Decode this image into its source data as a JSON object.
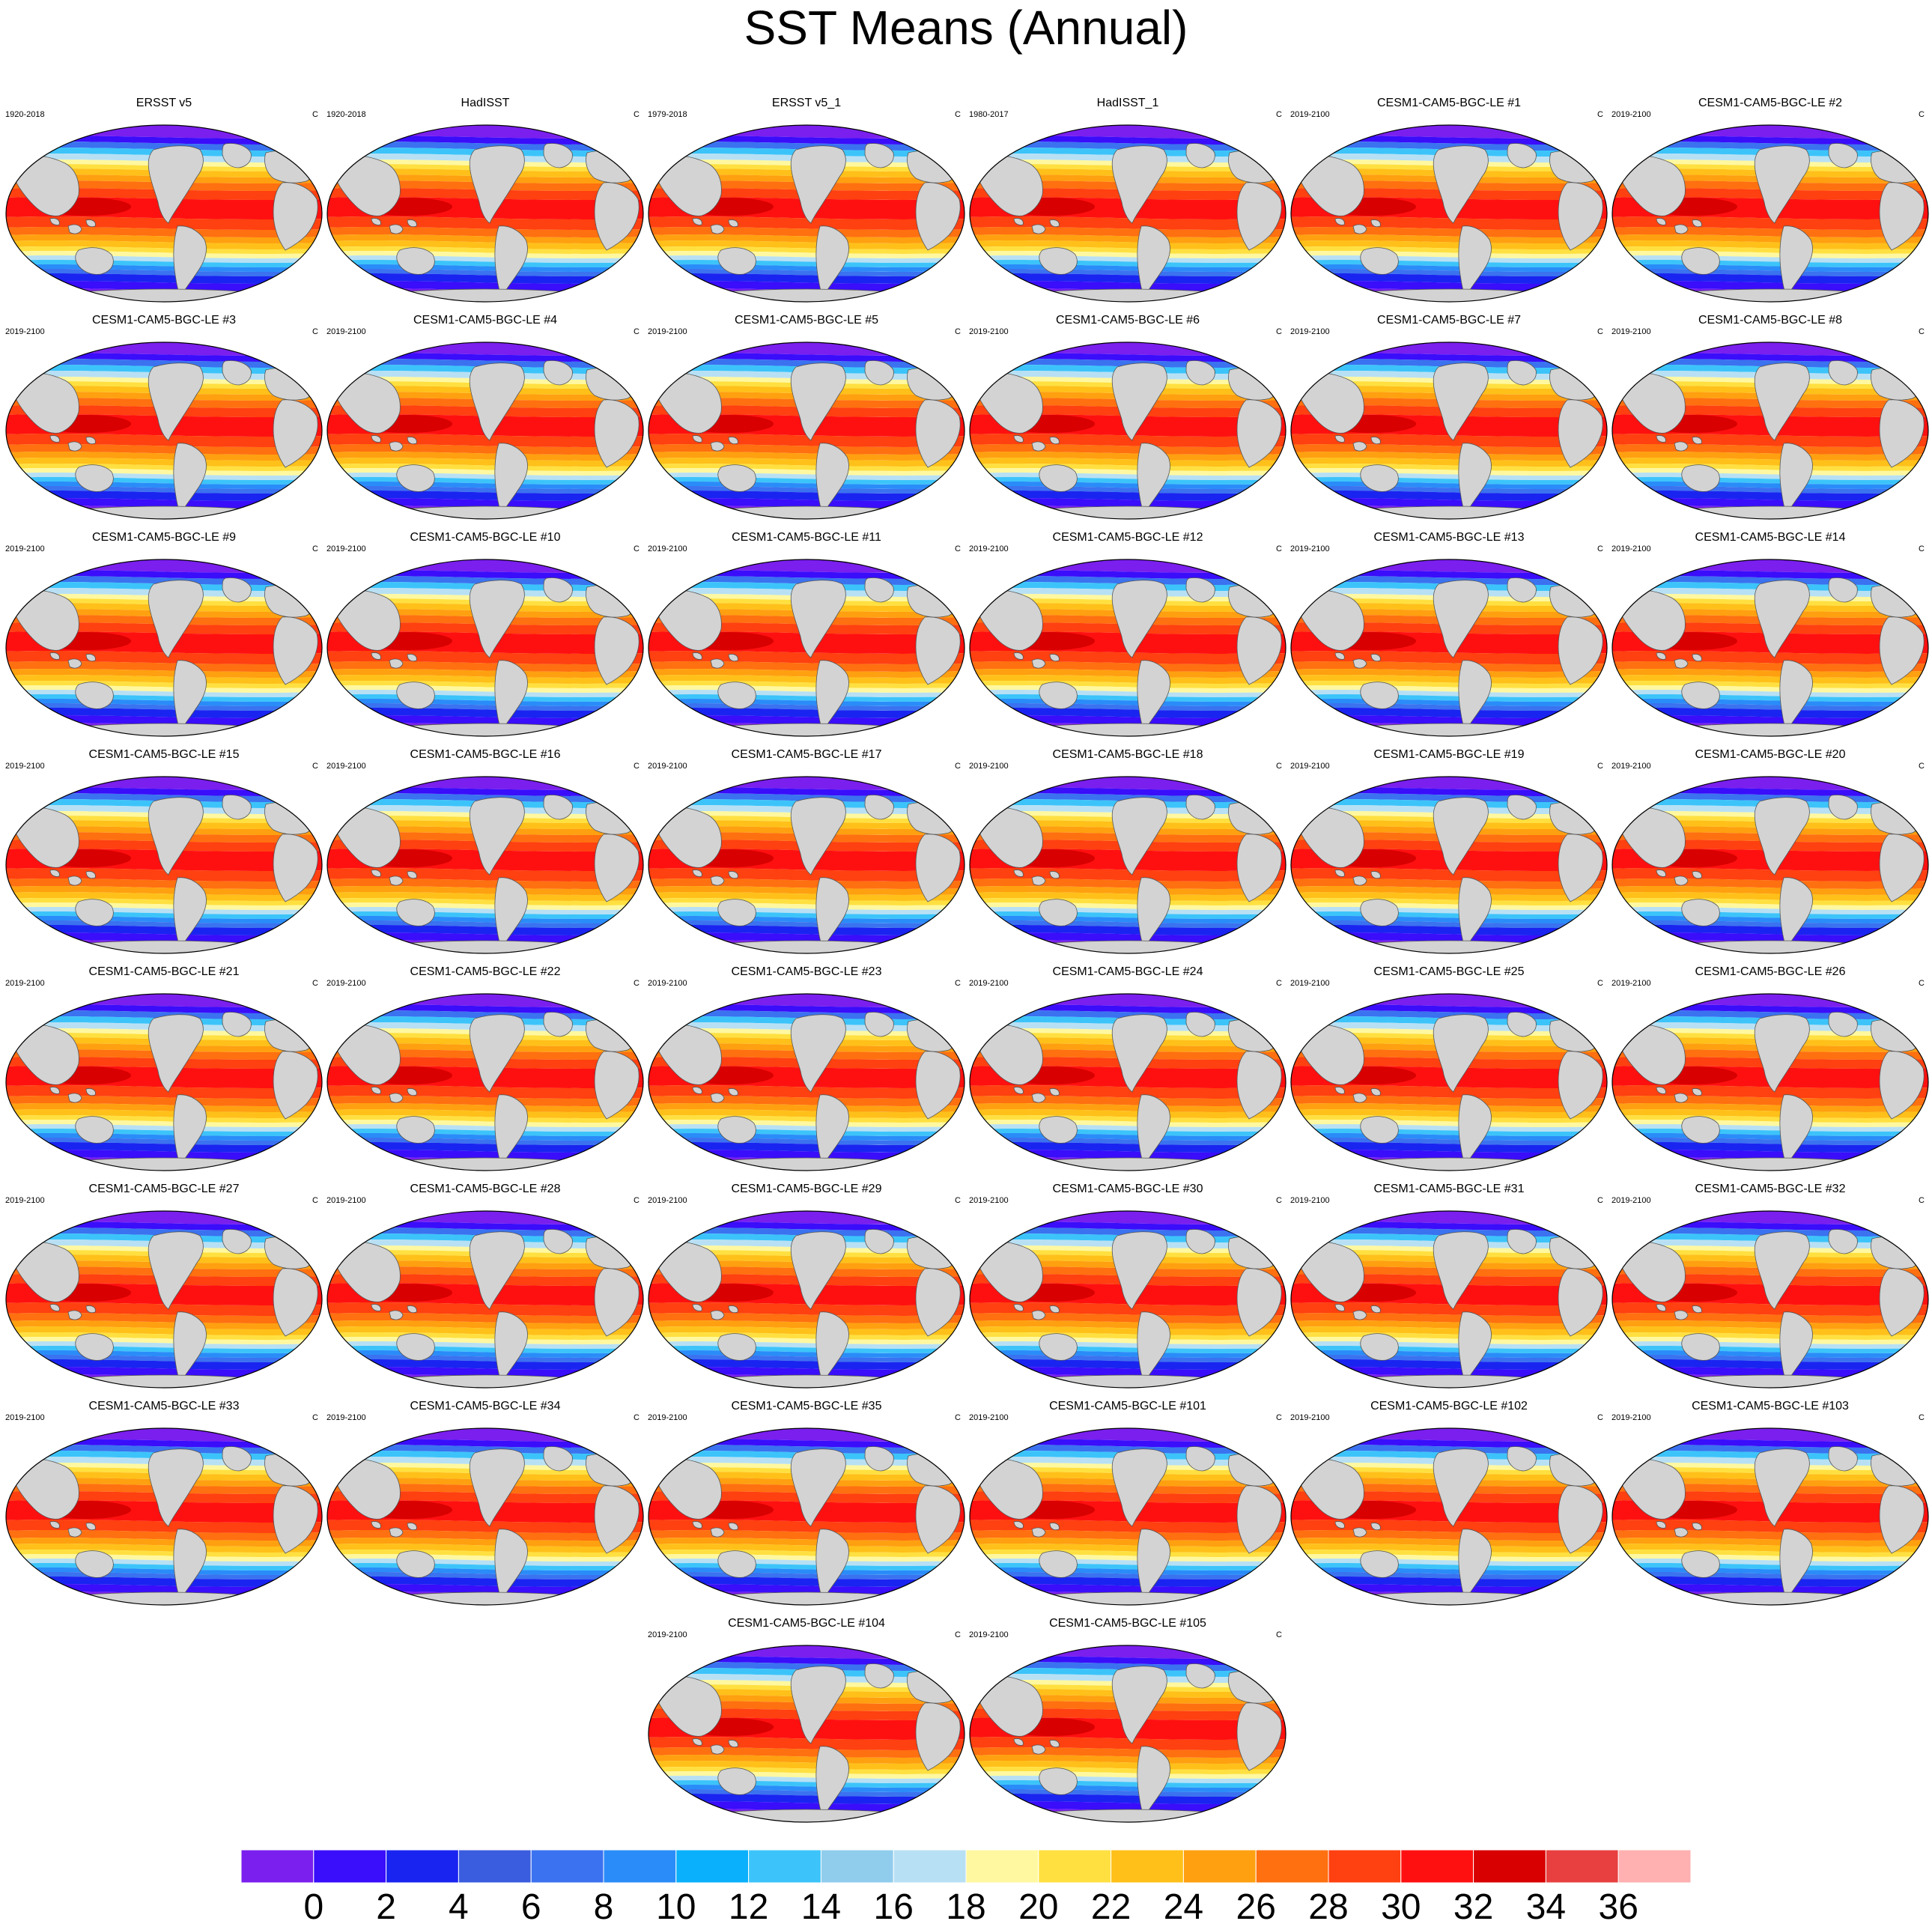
{
  "title": "SST Means (Annual)",
  "units": "C",
  "panels": [
    {
      "title": "ERSST v5",
      "period": "1920-2018",
      "units": "C"
    },
    {
      "title": "HadISST",
      "period": "1920-2018",
      "units": "C"
    },
    {
      "title": "ERSST v5_1",
      "period": "1979-2018",
      "units": "C"
    },
    {
      "title": "HadISST_1",
      "period": "1980-2017",
      "units": "C"
    },
    {
      "title": "CESM1-CAM5-BGC-LE #1",
      "period": "2019-2100",
      "units": "C"
    },
    {
      "title": "CESM1-CAM5-BGC-LE #2",
      "period": "2019-2100",
      "units": "C"
    },
    {
      "title": "CESM1-CAM5-BGC-LE #3",
      "period": "2019-2100",
      "units": "C"
    },
    {
      "title": "CESM1-CAM5-BGC-LE #4",
      "period": "2019-2100",
      "units": "C"
    },
    {
      "title": "CESM1-CAM5-BGC-LE #5",
      "period": "2019-2100",
      "units": "C"
    },
    {
      "title": "CESM1-CAM5-BGC-LE #6",
      "period": "2019-2100",
      "units": "C"
    },
    {
      "title": "CESM1-CAM5-BGC-LE #7",
      "period": "2019-2100",
      "units": "C"
    },
    {
      "title": "CESM1-CAM5-BGC-LE #8",
      "period": "2019-2100",
      "units": "C"
    },
    {
      "title": "CESM1-CAM5-BGC-LE #9",
      "period": "2019-2100",
      "units": "C"
    },
    {
      "title": "CESM1-CAM5-BGC-LE #10",
      "period": "2019-2100",
      "units": "C"
    },
    {
      "title": "CESM1-CAM5-BGC-LE #11",
      "period": "2019-2100",
      "units": "C"
    },
    {
      "title": "CESM1-CAM5-BGC-LE #12",
      "period": "2019-2100",
      "units": "C"
    },
    {
      "title": "CESM1-CAM5-BGC-LE #13",
      "period": "2019-2100",
      "units": "C"
    },
    {
      "title": "CESM1-CAM5-BGC-LE #14",
      "period": "2019-2100",
      "units": "C"
    },
    {
      "title": "CESM1-CAM5-BGC-LE #15",
      "period": "2019-2100",
      "units": "C"
    },
    {
      "title": "CESM1-CAM5-BGC-LE #16",
      "period": "2019-2100",
      "units": "C"
    },
    {
      "title": "CESM1-CAM5-BGC-LE #17",
      "period": "2019-2100",
      "units": "C"
    },
    {
      "title": "CESM1-CAM5-BGC-LE #18",
      "period": "2019-2100",
      "units": "C"
    },
    {
      "title": "CESM1-CAM5-BGC-LE #19",
      "period": "2019-2100",
      "units": "C"
    },
    {
      "title": "CESM1-CAM5-BGC-LE #20",
      "period": "2019-2100",
      "units": "C"
    },
    {
      "title": "CESM1-CAM5-BGC-LE #21",
      "period": "2019-2100",
      "units": "C"
    },
    {
      "title": "CESM1-CAM5-BGC-LE #22",
      "period": "2019-2100",
      "units": "C"
    },
    {
      "title": "CESM1-CAM5-BGC-LE #23",
      "period": "2019-2100",
      "units": "C"
    },
    {
      "title": "CESM1-CAM5-BGC-LE #24",
      "period": "2019-2100",
      "units": "C"
    },
    {
      "title": "CESM1-CAM5-BGC-LE #25",
      "period": "2019-2100",
      "units": "C"
    },
    {
      "title": "CESM1-CAM5-BGC-LE #26",
      "period": "2019-2100",
      "units": "C"
    },
    {
      "title": "CESM1-CAM5-BGC-LE #27",
      "period": "2019-2100",
      "units": "C"
    },
    {
      "title": "CESM1-CAM5-BGC-LE #28",
      "period": "2019-2100",
      "units": "C"
    },
    {
      "title": "CESM1-CAM5-BGC-LE #29",
      "period": "2019-2100",
      "units": "C"
    },
    {
      "title": "CESM1-CAM5-BGC-LE #30",
      "period": "2019-2100",
      "units": "C"
    },
    {
      "title": "CESM1-CAM5-BGC-LE #31",
      "period": "2019-2100",
      "units": "C"
    },
    {
      "title": "CESM1-CAM5-BGC-LE #32",
      "period": "2019-2100",
      "units": "C"
    },
    {
      "title": "CESM1-CAM5-BGC-LE #33",
      "period": "2019-2100",
      "units": "C"
    },
    {
      "title": "CESM1-CAM5-BGC-LE #34",
      "period": "2019-2100",
      "units": "C"
    },
    {
      "title": "CESM1-CAM5-BGC-LE #35",
      "period": "2019-2100",
      "units": "C"
    },
    {
      "title": "CESM1-CAM5-BGC-LE #101",
      "period": "2019-2100",
      "units": "C"
    },
    {
      "title": "CESM1-CAM5-BGC-LE #102",
      "period": "2019-2100",
      "units": "C"
    },
    {
      "title": "CESM1-CAM5-BGC-LE #103",
      "period": "2019-2100",
      "units": "C"
    },
    {
      "title": "CESM1-CAM5-BGC-LE #104",
      "period": "2019-2100",
      "units": "C"
    },
    {
      "title": "CESM1-CAM5-BGC-LE #105",
      "period": "2019-2100",
      "units": "C"
    }
  ],
  "colorbar": {
    "labels": [
      "0",
      "2",
      "4",
      "6",
      "8",
      "10",
      "12",
      "14",
      "16",
      "18",
      "20",
      "22",
      "24",
      "26",
      "28",
      "30",
      "32",
      "34",
      "36"
    ],
    "colors": [
      "#7a1fee",
      "#3a0dfb",
      "#1a24f0",
      "#3a5cde",
      "#3a72f0",
      "#2a8cf8",
      "#0ab0fb",
      "#3cc4fa",
      "#90ccec",
      "#b8e0f4",
      "#fff8a0",
      "#ffe040",
      "#ffc01a",
      "#ffa010",
      "#ff7010",
      "#ff4010",
      "#ff1010",
      "#d80000",
      "#e84040",
      "#ffb0b0"
    ]
  },
  "map_colors": {
    "land": "#d3d3d3",
    "missing": "#ffffff",
    "band_colors": [
      "#7a1fee",
      "#3a0dfb",
      "#1a24f0",
      "#3a72f0",
      "#2a8cf8",
      "#3cc4fa",
      "#b8e0f4",
      "#fff8a0",
      "#ffe040",
      "#ffc01a",
      "#ffa010",
      "#ff7010",
      "#ff4010",
      "#ff1010",
      "#d80000"
    ]
  }
}
